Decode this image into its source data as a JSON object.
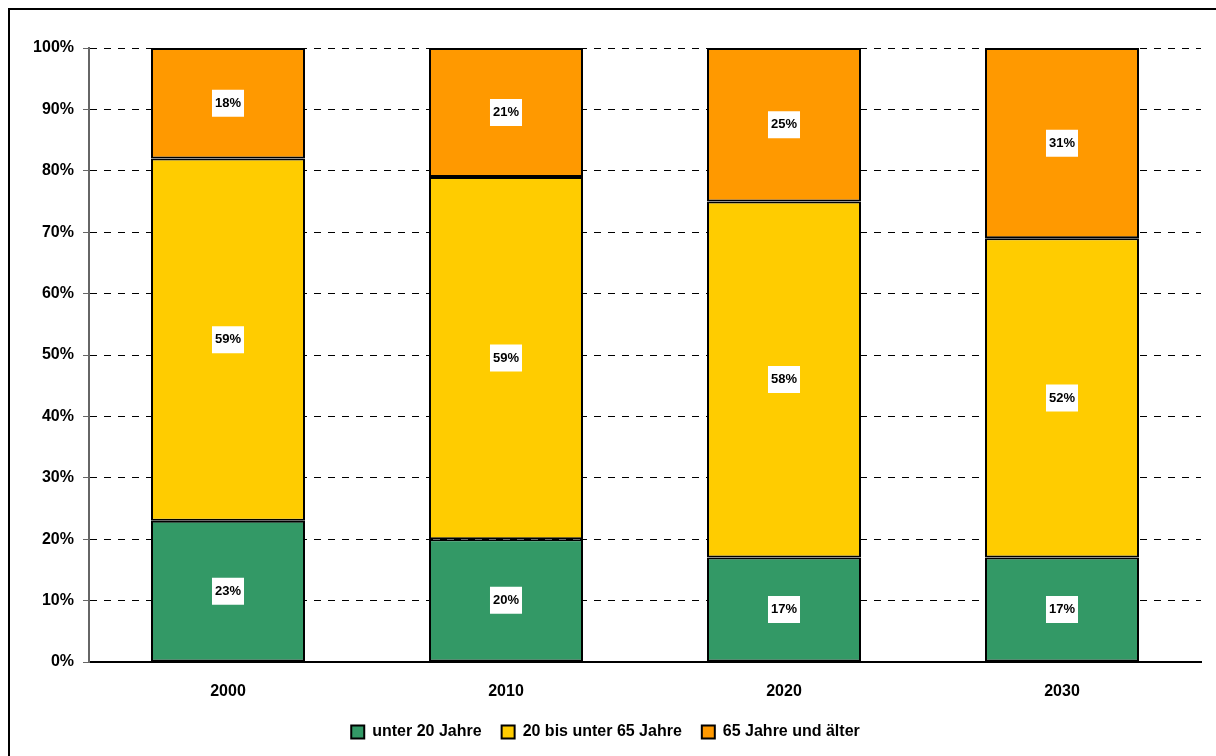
{
  "chart_data": {
    "type": "bar",
    "stacked": true,
    "categories": [
      "2000",
      "2010",
      "2020",
      "2030"
    ],
    "series": [
      {
        "name": "unter 20 Jahre",
        "color": "#339966",
        "values": [
          23,
          20,
          17,
          17
        ],
        "value_labels": [
          "23%",
          "20%",
          "17%",
          "17%"
        ]
      },
      {
        "name": "20 bis unter 65 Jahre",
        "color": "#ffcc00",
        "values": [
          59,
          59,
          58,
          52
        ],
        "value_labels": [
          "59%",
          "59%",
          "58%",
          "52%"
        ]
      },
      {
        "name": "65 Jahre und älter",
        "color": "#ff9900",
        "values": [
          18,
          21,
          25,
          31
        ],
        "value_labels": [
          "18%",
          "21%",
          "25%",
          "31%"
        ]
      }
    ],
    "ylim": [
      0,
      100
    ],
    "yticks": [
      {
        "value": 0,
        "label": "0%"
      },
      {
        "value": 10,
        "label": "10%"
      },
      {
        "value": 20,
        "label": "20%"
      },
      {
        "value": 30,
        "label": "30%"
      },
      {
        "value": 40,
        "label": "40%"
      },
      {
        "value": 50,
        "label": "50%"
      },
      {
        "value": 60,
        "label": "60%"
      },
      {
        "value": 70,
        "label": "70%"
      },
      {
        "value": 80,
        "label": "80%"
      },
      {
        "value": 90,
        "label": "90%"
      },
      {
        "value": 100,
        "label": "100%"
      }
    ],
    "grid": "y",
    "legend": "bottom"
  }
}
